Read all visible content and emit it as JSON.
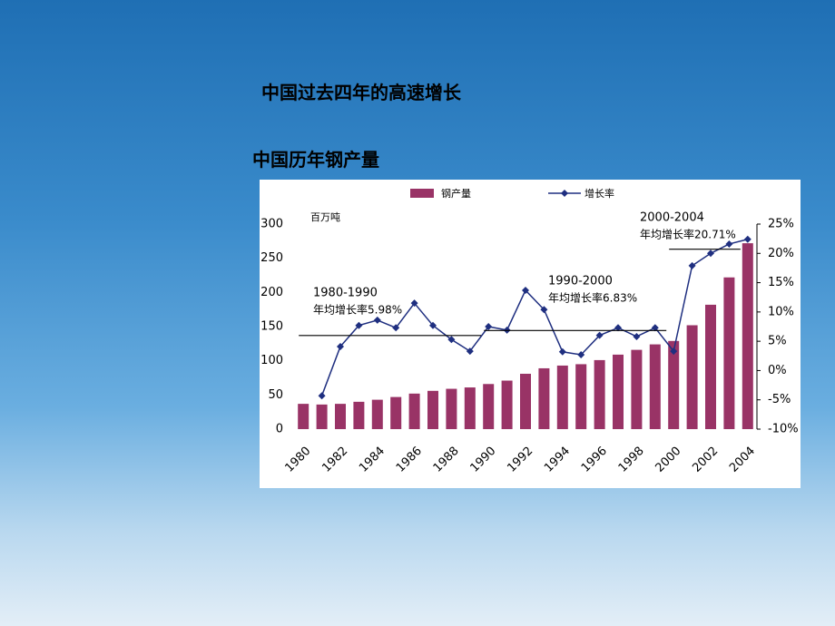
{
  "title": "中国过去四年的高速增长",
  "chart_data": {
    "type": "bar",
    "title": "中国历年钢产量",
    "y_label": "百万吨",
    "categories": [
      "1980",
      null,
      "1982",
      null,
      "1984",
      null,
      "1986",
      null,
      "1988",
      null,
      "1990",
      null,
      "1992",
      null,
      "1994",
      null,
      "1996",
      null,
      "1998",
      null,
      "2000",
      null,
      "2002",
      null,
      "2004"
    ],
    "series": [
      {
        "name": "钢产量",
        "type": "bar",
        "color": "#993366",
        "values": [
          37,
          36,
          37,
          40,
          43,
          47,
          52,
          56,
          59,
          61,
          66,
          71,
          81,
          89,
          93,
          95,
          101,
          109,
          116,
          124,
          129,
          152,
          182,
          222,
          272
        ]
      },
      {
        "name": "增长率",
        "type": "line",
        "axis": "y2",
        "color": "#1f2f80",
        "values": [
          null,
          -4.3,
          4.1,
          7.7,
          8.6,
          7.3,
          11.5,
          7.7,
          5.3,
          3.3,
          7.5,
          6.9,
          13.7,
          10.4,
          3.2,
          2.7,
          6.0,
          7.3,
          5.8,
          7.3,
          3.3,
          17.9,
          20.0,
          21.6,
          22.4
        ]
      }
    ],
    "ylim": [
      0,
      300
    ],
    "yticks": [
      0,
      50,
      100,
      150,
      200,
      250,
      300
    ],
    "y2lim": [
      -10,
      25
    ],
    "y2ticks": [
      {
        "value": -10,
        "label": "-10%"
      },
      {
        "value": -5,
        "label": "-5%"
      },
      {
        "value": 0,
        "label": "0%"
      },
      {
        "value": 5,
        "label": "5%"
      },
      {
        "value": 10,
        "label": "10%"
      },
      {
        "value": 15,
        "label": "15%"
      },
      {
        "value": 20,
        "label": "20%"
      },
      {
        "value": 25,
        "label": "25%"
      }
    ],
    "legend": "top",
    "annotations": [
      {
        "period": "1980-1990",
        "label": "年均增长率5.98%",
        "value": 5.98
      },
      {
        "period": "1990-2000",
        "label": "年均增长率6.83%",
        "value": 6.83
      },
      {
        "period": "2000-2004",
        "label": "年均增长率20.71%",
        "value": 20.71
      }
    ]
  }
}
